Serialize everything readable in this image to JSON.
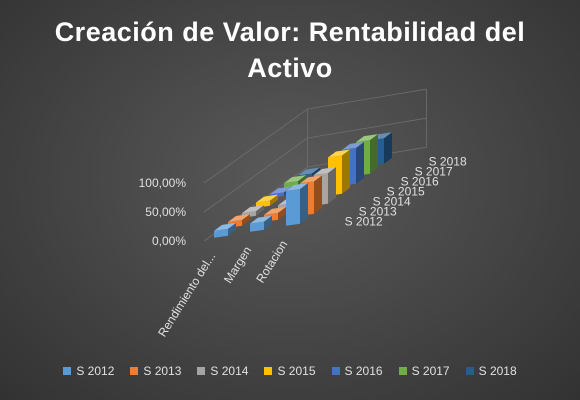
{
  "chart_data": {
    "type": "bar",
    "title": "Creación de Valor: Rentabilidad del Activo",
    "categories": [
      "Rendimiento del...",
      "Margen",
      "Rotacion"
    ],
    "yticks": [
      "0,00%",
      "50,00%",
      "100,00%"
    ],
    "ylim": [
      0,
      100
    ],
    "grid": true,
    "legend_position": "bottom",
    "series": [
      {
        "name": "S 2012",
        "values": [
          12,
          14,
          60
        ],
        "color": "#5b9bd5"
      },
      {
        "name": "S 2013",
        "values": [
          10,
          12,
          56
        ],
        "color": "#ed7d31"
      },
      {
        "name": "S 2014",
        "values": [
          8,
          11,
          53
        ],
        "color": "#a5a5a5"
      },
      {
        "name": "S 2015",
        "values": [
          9,
          12,
          66
        ],
        "color": "#ffc000"
      },
      {
        "name": "S 2016",
        "values": [
          6,
          9,
          62
        ],
        "color": "#4472c4"
      },
      {
        "name": "S 2017",
        "values": [
          8,
          11,
          58
        ],
        "color": "#70ad47"
      },
      {
        "name": "S 2018",
        "values": [
          4,
          7,
          44
        ],
        "color": "#255e91"
      }
    ]
  }
}
